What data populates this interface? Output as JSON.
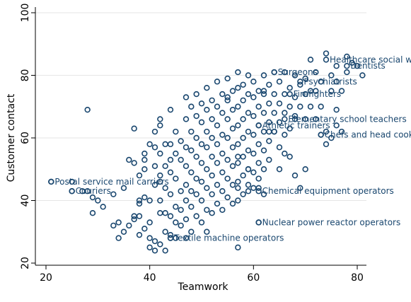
{
  "colors": {
    "marker": "#1a476f",
    "label_text": "#1a476f",
    "grid": "#e6e6e6",
    "background": "#ffffff"
  },
  "chart_data": {
    "type": "scatter",
    "title": "",
    "xlabel": "Teamwork",
    "ylabel": "Customer contact",
    "xlim": [
      20,
      82
    ],
    "ylim": [
      20,
      102
    ],
    "xticks": [
      20,
      40,
      60,
      80
    ],
    "yticks": [
      20,
      40,
      60,
      80,
      100
    ],
    "grid": "horizontal",
    "legend": "none",
    "marker": "hollow-circle",
    "points": [
      [
        25,
        43
      ],
      [
        27,
        43
      ],
      [
        28,
        43
      ],
      [
        28,
        69
      ],
      [
        29,
        36
      ],
      [
        29,
        41
      ],
      [
        30,
        40
      ],
      [
        31,
        38
      ],
      [
        33,
        32
      ],
      [
        33,
        42
      ],
      [
        34,
        28
      ],
      [
        34,
        33
      ],
      [
        35,
        30
      ],
      [
        35,
        44
      ],
      [
        36,
        53
      ],
      [
        36,
        32
      ],
      [
        37,
        35
      ],
      [
        37,
        34
      ],
      [
        37,
        63
      ],
      [
        37,
        52
      ],
      [
        38,
        48
      ],
      [
        38,
        40
      ],
      [
        38,
        39
      ],
      [
        38,
        35
      ],
      [
        38,
        29
      ],
      [
        39,
        50
      ],
      [
        39,
        53
      ],
      [
        39,
        55
      ],
      [
        39,
        41
      ],
      [
        39,
        31
      ],
      [
        40,
        58
      ],
      [
        40,
        25
      ],
      [
        40,
        40
      ],
      [
        40,
        33
      ],
      [
        40,
        28
      ],
      [
        41,
        62
      ],
      [
        41,
        57
      ],
      [
        41,
        51
      ],
      [
        41,
        45
      ],
      [
        41,
        27
      ],
      [
        41,
        24
      ],
      [
        42,
        66
      ],
      [
        42,
        64
      ],
      [
        42,
        55
      ],
      [
        42,
        48
      ],
      [
        42,
        46
      ],
      [
        42,
        40
      ],
      [
        42,
        36
      ],
      [
        42,
        26
      ],
      [
        43,
        58
      ],
      [
        43,
        51
      ],
      [
        43,
        44
      ],
      [
        43,
        36
      ],
      [
        43,
        30
      ],
      [
        43,
        24
      ],
      [
        44,
        69
      ],
      [
        44,
        58
      ],
      [
        44,
        53
      ],
      [
        44,
        49
      ],
      [
        44,
        42
      ],
      [
        44,
        35
      ],
      [
        44,
        29
      ],
      [
        45,
        62
      ],
      [
        45,
        55
      ],
      [
        45,
        47
      ],
      [
        45,
        38
      ],
      [
        45,
        33
      ],
      [
        45,
        28
      ],
      [
        46,
        59
      ],
      [
        46,
        53
      ],
      [
        46,
        43
      ],
      [
        46,
        37
      ],
      [
        46,
        32
      ],
      [
        47,
        73
      ],
      [
        47,
        66
      ],
      [
        47,
        57
      ],
      [
        47,
        51
      ],
      [
        47,
        45
      ],
      [
        47,
        40
      ],
      [
        47,
        34
      ],
      [
        47,
        28
      ],
      [
        48,
        70
      ],
      [
        48,
        62
      ],
      [
        48,
        56
      ],
      [
        48,
        49
      ],
      [
        48,
        43
      ],
      [
        48,
        38
      ],
      [
        48,
        30
      ],
      [
        49,
        74
      ],
      [
        49,
        67
      ],
      [
        49,
        60
      ],
      [
        49,
        54
      ],
      [
        49,
        47
      ],
      [
        49,
        42
      ],
      [
        49,
        35
      ],
      [
        50,
        71
      ],
      [
        50,
        65
      ],
      [
        50,
        58
      ],
      [
        50,
        52
      ],
      [
        50,
        46
      ],
      [
        50,
        40
      ],
      [
        50,
        33
      ],
      [
        51,
        76
      ],
      [
        51,
        69
      ],
      [
        51,
        62
      ],
      [
        51,
        57
      ],
      [
        51,
        50
      ],
      [
        51,
        44
      ],
      [
        51,
        37
      ],
      [
        51,
        30
      ],
      [
        52,
        72
      ],
      [
        52,
        66
      ],
      [
        52,
        60
      ],
      [
        52,
        54
      ],
      [
        52,
        48
      ],
      [
        52,
        42
      ],
      [
        52,
        36
      ],
      [
        53,
        78
      ],
      [
        53,
        70
      ],
      [
        53,
        64
      ],
      [
        53,
        58
      ],
      [
        53,
        52
      ],
      [
        53,
        45
      ],
      [
        53,
        39
      ],
      [
        54,
        74
      ],
      [
        54,
        68
      ],
      [
        54,
        61
      ],
      [
        54,
        55
      ],
      [
        54,
        49
      ],
      [
        54,
        43
      ],
      [
        54,
        37
      ],
      [
        55,
        79
      ],
      [
        55,
        72
      ],
      [
        55,
        66
      ],
      [
        55,
        60
      ],
      [
        55,
        53
      ],
      [
        55,
        47
      ],
      [
        55,
        41
      ],
      [
        56,
        75
      ],
      [
        56,
        69
      ],
      [
        56,
        63
      ],
      [
        56,
        57
      ],
      [
        56,
        51
      ],
      [
        56,
        45
      ],
      [
        56,
        39
      ],
      [
        57,
        81
      ],
      [
        57,
        76
      ],
      [
        57,
        70
      ],
      [
        57,
        64
      ],
      [
        57,
        58
      ],
      [
        57,
        52
      ],
      [
        57,
        46
      ],
      [
        57,
        40
      ],
      [
        57,
        25
      ],
      [
        58,
        77
      ],
      [
        58,
        72
      ],
      [
        58,
        66
      ],
      [
        58,
        60
      ],
      [
        58,
        54
      ],
      [
        58,
        48
      ],
      [
        58,
        42
      ],
      [
        59,
        80
      ],
      [
        59,
        74
      ],
      [
        59,
        68
      ],
      [
        59,
        62
      ],
      [
        59,
        56
      ],
      [
        59,
        50
      ],
      [
        59,
        45
      ],
      [
        60,
        78
      ],
      [
        60,
        73
      ],
      [
        60,
        67
      ],
      [
        60,
        61
      ],
      [
        60,
        55
      ],
      [
        60,
        49
      ],
      [
        60,
        44
      ],
      [
        61,
        75
      ],
      [
        61,
        70
      ],
      [
        61,
        64
      ],
      [
        61,
        58
      ],
      [
        61,
        52
      ],
      [
        61,
        47
      ],
      [
        61,
        33
      ],
      [
        62,
        80
      ],
      [
        62,
        74
      ],
      [
        62,
        68
      ],
      [
        62,
        62
      ],
      [
        62,
        56
      ],
      [
        62,
        50
      ],
      [
        62,
        42
      ],
      [
        63,
        77
      ],
      [
        63,
        71
      ],
      [
        63,
        65
      ],
      [
        63,
        59
      ],
      [
        63,
        53
      ],
      [
        64,
        81
      ],
      [
        64,
        74
      ],
      [
        64,
        68
      ],
      [
        64,
        62
      ],
      [
        65,
        78
      ],
      [
        65,
        71
      ],
      [
        65,
        65
      ],
      [
        65,
        57
      ],
      [
        65,
        50
      ],
      [
        66,
        81
      ],
      [
        66,
        74
      ],
      [
        66,
        68
      ],
      [
        66,
        61
      ],
      [
        66,
        55
      ],
      [
        67,
        76
      ],
      [
        67,
        70
      ],
      [
        67,
        63
      ],
      [
        67,
        54
      ],
      [
        68,
        80
      ],
      [
        68,
        73
      ],
      [
        68,
        67
      ],
      [
        68,
        48
      ],
      [
        69,
        77
      ],
      [
        69,
        70
      ],
      [
        69,
        44
      ],
      [
        70,
        79
      ],
      [
        70,
        74
      ],
      [
        70,
        66
      ],
      [
        70,
        50
      ],
      [
        71,
        85
      ],
      [
        71,
        75
      ],
      [
        71,
        70
      ],
      [
        72,
        81
      ],
      [
        72,
        75
      ],
      [
        72,
        66
      ],
      [
        73,
        78
      ],
      [
        73,
        70
      ],
      [
        74,
        87
      ],
      [
        74,
        62
      ],
      [
        74,
        58
      ],
      [
        75,
        80
      ],
      [
        75,
        75
      ],
      [
        75,
        60
      ],
      [
        76,
        83
      ],
      [
        76,
        78
      ],
      [
        76,
        69
      ],
      [
        76,
        64
      ],
      [
        77,
        75
      ],
      [
        77,
        62
      ],
      [
        78,
        86
      ],
      [
        78,
        81
      ],
      [
        79,
        84
      ],
      [
        80,
        83
      ],
      [
        81,
        80
      ],
      [
        21,
        46
      ],
      [
        25,
        46
      ],
      [
        44,
        28
      ],
      [
        57,
        44
      ],
      [
        59,
        43
      ],
      [
        61,
        44
      ],
      [
        64,
        62
      ],
      [
        68,
        66
      ],
      [
        73,
        61
      ],
      [
        59,
        50
      ],
      [
        62,
        75
      ],
      [
        63,
        62
      ],
      [
        57,
        54
      ],
      [
        55,
        73
      ]
    ],
    "labeled_points": [
      {
        "label": "Healthcare social workers",
        "x": 74,
        "y": 85
      },
      {
        "label": "Dentists",
        "x": 78,
        "y": 83
      },
      {
        "label": "Surgeons",
        "x": 64,
        "y": 81
      },
      {
        "label": "Psychiatrists",
        "x": 69,
        "y": 78
      },
      {
        "label": "Firefighters",
        "x": 67,
        "y": 74
      },
      {
        "label": "Elementary school teachers",
        "x": 66,
        "y": 66
      },
      {
        "label": "Athletic trainers",
        "x": 61,
        "y": 64
      },
      {
        "label": "Chefs and head cooks",
        "x": 73,
        "y": 61
      },
      {
        "label": "Postal service mail carriers",
        "x": 21,
        "y": 46
      },
      {
        "label": "Couriers",
        "x": 25,
        "y": 43
      },
      {
        "label": "Chemical equipment operators",
        "x": 61,
        "y": 43
      },
      {
        "label": "Nuclear power reactor operators",
        "x": 61,
        "y": 33
      },
      {
        "label": "Textile machine operators",
        "x": 44,
        "y": 28
      }
    ]
  }
}
